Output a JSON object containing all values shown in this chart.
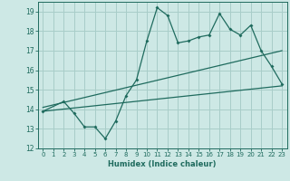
{
  "xlabel": "Humidex (Indice chaleur)",
  "xlim": [
    -0.5,
    23.5
  ],
  "ylim": [
    12,
    19.5
  ],
  "yticks": [
    12,
    13,
    14,
    15,
    16,
    17,
    18,
    19
  ],
  "xticks": [
    0,
    1,
    2,
    3,
    4,
    5,
    6,
    7,
    8,
    9,
    10,
    11,
    12,
    13,
    14,
    15,
    16,
    17,
    18,
    19,
    20,
    21,
    22,
    23
  ],
  "bg_color": "#cde8e5",
  "grid_color": "#a8cdc9",
  "line_color": "#1f6b5e",
  "main_line_x": [
    0,
    2,
    3,
    4,
    5,
    6,
    7,
    8,
    9,
    10,
    11,
    12,
    13,
    14,
    15,
    16,
    17,
    18,
    19,
    20,
    21,
    22,
    23
  ],
  "main_line_y": [
    13.9,
    14.4,
    13.8,
    13.1,
    13.1,
    12.5,
    13.4,
    14.7,
    15.5,
    17.5,
    19.2,
    18.8,
    17.4,
    17.5,
    17.7,
    17.8,
    18.9,
    18.1,
    17.8,
    18.3,
    17.0,
    16.2,
    15.3
  ],
  "trend1_x": [
    0,
    23
  ],
  "trend1_y": [
    13.9,
    15.2
  ],
  "trend2_x": [
    0,
    23
  ],
  "trend2_y": [
    14.1,
    17.0
  ]
}
